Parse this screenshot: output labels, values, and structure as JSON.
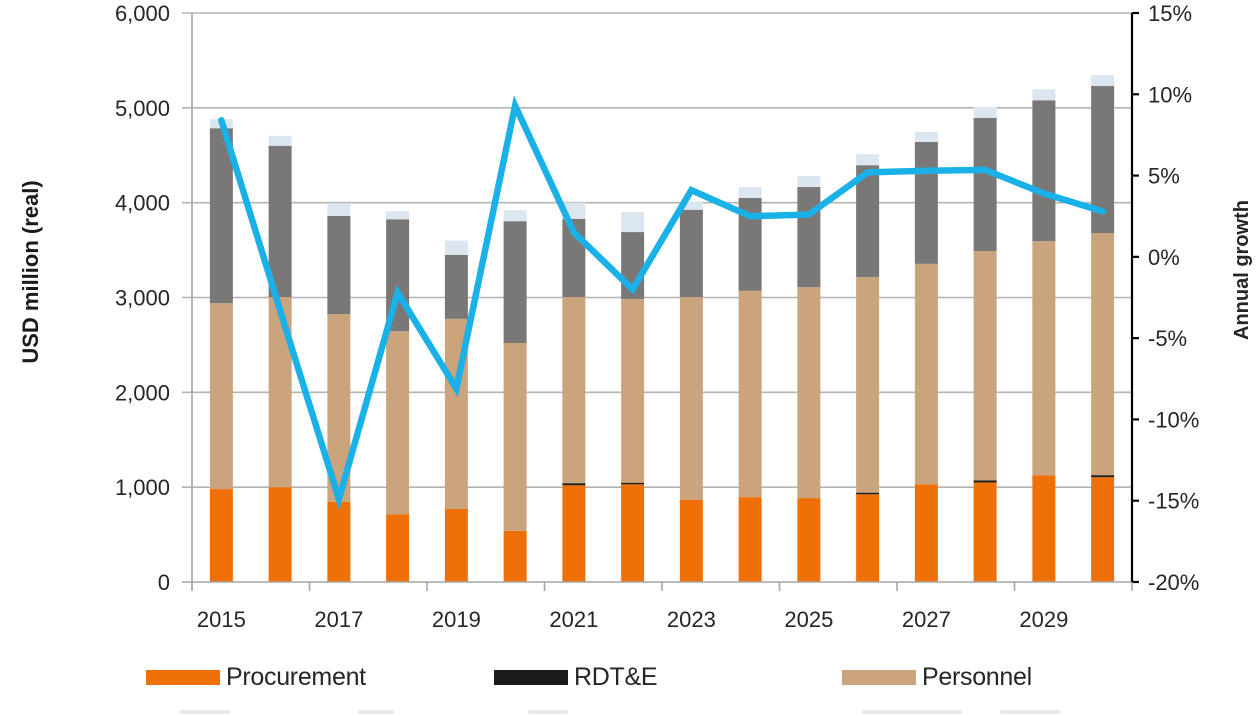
{
  "chart_data": {
    "type": "bar",
    "subtype": "stacked bar with secondary-axis line",
    "title": "",
    "categories": [
      "2015",
      "2016",
      "2017",
      "2018",
      "2019",
      "2020",
      "2021",
      "2022",
      "2023",
      "2024",
      "2025",
      "2026",
      "2027",
      "2028",
      "2029",
      "2030"
    ],
    "x_tick_labels": [
      "2015",
      "2017",
      "2019",
      "2021",
      "2023",
      "2025",
      "2027",
      "2029"
    ],
    "ylabel": "USD million (real)",
    "ylim": [
      0,
      6000
    ],
    "y_ticks": [
      0,
      1000,
      2000,
      3000,
      4000,
      5000,
      6000
    ],
    "y_tick_labels": [
      "0",
      "1,000",
      "2,000",
      "3,000",
      "4,000",
      "5,000",
      "6,000"
    ],
    "y2label": "Annual growth",
    "y2lim": [
      -20,
      15
    ],
    "y2_ticks": [
      -20,
      -15,
      -10,
      -5,
      0,
      5,
      10,
      15
    ],
    "y2_tick_labels": [
      "-20%",
      "-15%",
      "-10%",
      "-5%",
      "0%",
      "5%",
      "10%",
      "15%"
    ],
    "grid": true,
    "legend_position": "bottom",
    "series": [
      {
        "name": "Procurement",
        "type": "bar",
        "axis": "left",
        "color": "#F07008",
        "values": [
          980,
          1000,
          845,
          715,
          770,
          540,
          1020,
          1030,
          865,
          895,
          885,
          925,
          1030,
          1050,
          1125,
          1105
        ]
      },
      {
        "name": "RDT&E",
        "type": "bar",
        "axis": "left",
        "color": "#1A1A1A",
        "values": [
          0,
          0,
          0,
          0,
          0,
          0,
          20,
          15,
          0,
          0,
          0,
          15,
          0,
          20,
          0,
          20
        ]
      },
      {
        "name": "Personnel",
        "type": "bar",
        "axis": "left",
        "color": "#C9A47C",
        "values": [
          1960,
          2005,
          1980,
          1930,
          2005,
          1980,
          1965,
          1940,
          2140,
          2175,
          2225,
          2275,
          2325,
          2420,
          2470,
          2555
        ]
      },
      {
        "name": "",
        "type": "bar",
        "axis": "left",
        "color": "#7A7876",
        "values": [
          1845,
          1595,
          1035,
          1180,
          675,
          1285,
          825,
          705,
          920,
          980,
          1055,
          1180,
          1285,
          1405,
          1485,
          1550
        ]
      },
      {
        "name": "",
        "type": "bar",
        "axis": "left",
        "color": "#DCE6F0",
        "values": [
          95,
          105,
          135,
          85,
          150,
          115,
          170,
          210,
          85,
          115,
          115,
          115,
          105,
          115,
          115,
          115
        ]
      },
      {
        "name": "Annual growth",
        "type": "line",
        "axis": "right",
        "color": "#1AB0E8",
        "values": [
          8.4,
          -3.3,
          -14.9,
          -2.2,
          -8.1,
          9.3,
          1.5,
          -2.0,
          4.1,
          2.5,
          2.6,
          5.2,
          5.3,
          5.35,
          3.9,
          2.8
        ]
      }
    ]
  },
  "legend": {
    "items": [
      {
        "label": "Procurement",
        "color": "#F07008"
      },
      {
        "label": "RDT&E",
        "color": "#1A1A1A"
      },
      {
        "label": "Personnel",
        "color": "#C9A47C"
      }
    ]
  }
}
